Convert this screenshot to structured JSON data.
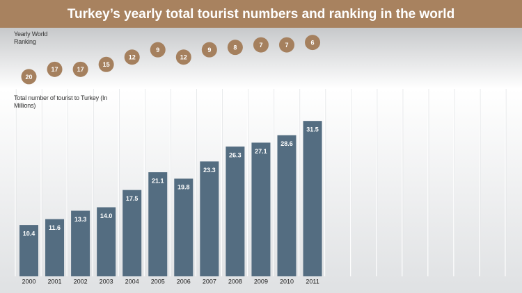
{
  "chart_data": [
    {
      "type": "dot",
      "label": "Yearly World Ranking",
      "values": [
        20,
        17,
        17,
        15,
        12,
        9,
        12,
        9,
        8,
        7,
        7,
        6
      ],
      "ylim": [
        25,
        0
      ],
      "color": "#a5805e"
    },
    {
      "type": "bar",
      "title": "Turkey’s yearly total tourist numbers and ranking in the world",
      "label": "Total number of tourist to Turkey (In Millions)",
      "categories": [
        "2000",
        "2001",
        "2002",
        "2003",
        "2004",
        "2005",
        "2006",
        "2007",
        "2008",
        "2009",
        "2010",
        "2011"
      ],
      "values": [
        10.4,
        11.6,
        13.3,
        14.0,
        17.5,
        21.1,
        19.8,
        23.3,
        26.3,
        27.1,
        28.6,
        31.5
      ],
      "value_labels": [
        "10.4",
        "11.6",
        "13.3",
        "14.0",
        "17.5",
        "21.1",
        "19.8",
        "23.3",
        "26.3",
        "27.1",
        "28.6",
        "31.5"
      ],
      "ylim": [
        0,
        38
      ],
      "color": "#546d81"
    }
  ]
}
